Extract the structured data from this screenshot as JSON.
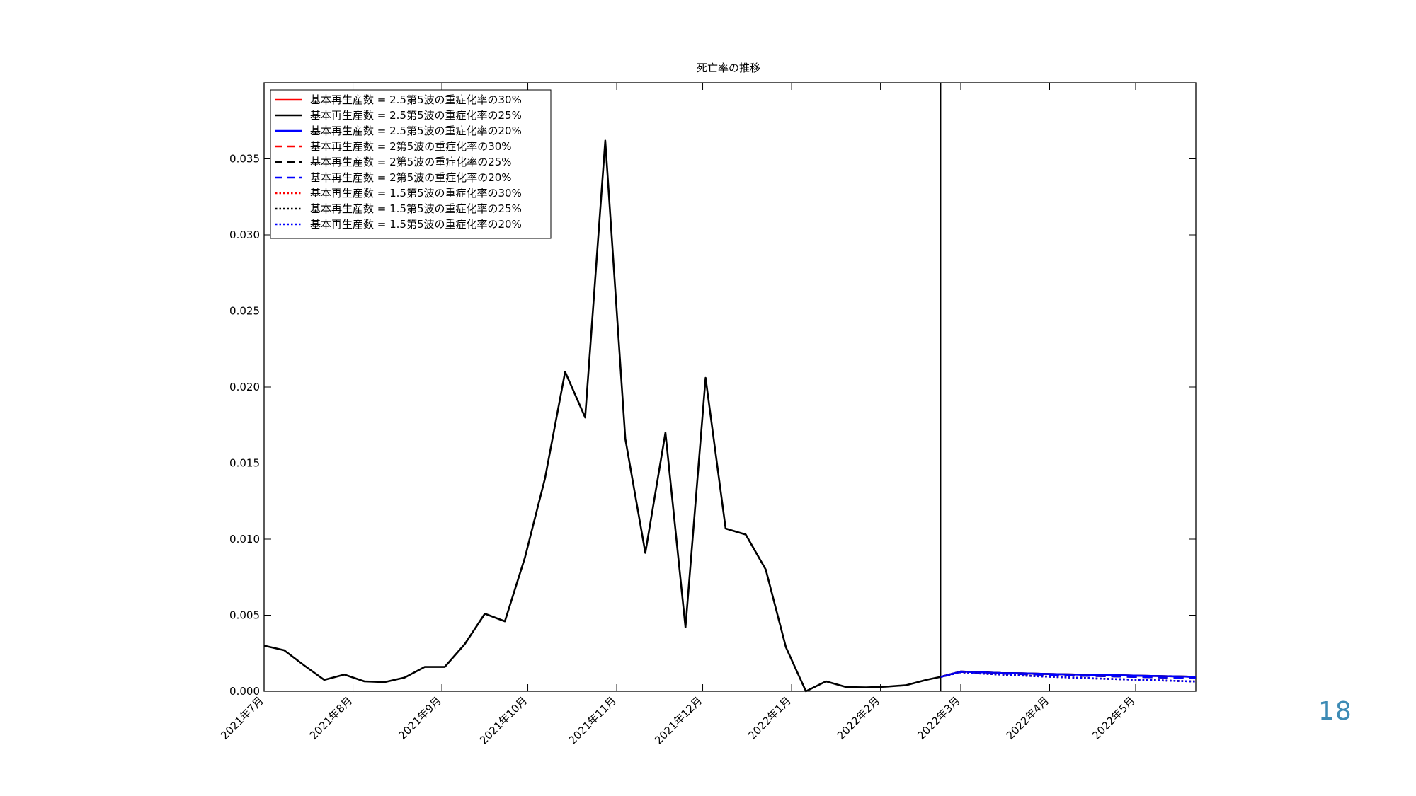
{
  "page_number": "18",
  "chart_data": {
    "type": "line",
    "title": "死亡率の推移",
    "xlabel": "",
    "ylabel": "",
    "x_start": "2021-07-01",
    "x_end": "2022-05-22",
    "ylim": [
      0,
      0.04
    ],
    "yticks": [
      0.0,
      0.005,
      0.01,
      0.015,
      0.02,
      0.025,
      0.03,
      0.035
    ],
    "ytick_labels": [
      "0.000",
      "0.005",
      "0.010",
      "0.015",
      "0.020",
      "0.025",
      "0.030",
      "0.035"
    ],
    "xticks": [
      {
        "date": "2021-07-01",
        "label": "2021年7月"
      },
      {
        "date": "2021-08-01",
        "label": "2021年8月"
      },
      {
        "date": "2021-09-01",
        "label": "2021年9月"
      },
      {
        "date": "2021-10-01",
        "label": "2021年10月"
      },
      {
        "date": "2021-11-01",
        "label": "2021年11月"
      },
      {
        "date": "2021-12-01",
        "label": "2021年12月"
      },
      {
        "date": "2022-01-01",
        "label": "2022年1月"
      },
      {
        "date": "2022-02-01",
        "label": "2022年2月"
      },
      {
        "date": "2022-03-01",
        "label": "2022年3月"
      },
      {
        "date": "2022-04-01",
        "label": "2022年4月"
      },
      {
        "date": "2022-05-01",
        "label": "2022年5月"
      }
    ],
    "vertical_line": "2022-02-22",
    "grid": false,
    "legend_position": "top-left",
    "observed": {
      "dates": [
        "2021-07-01",
        "2021-07-08",
        "2021-07-15",
        "2021-07-22",
        "2021-07-29",
        "2021-08-05",
        "2021-08-12",
        "2021-08-19",
        "2021-08-26",
        "2021-09-02",
        "2021-09-09",
        "2021-09-16",
        "2021-09-23",
        "2021-09-30",
        "2021-10-07",
        "2021-10-14",
        "2021-10-21",
        "2021-10-28",
        "2021-11-04",
        "2021-11-11",
        "2021-11-18",
        "2021-11-25",
        "2021-12-02",
        "2021-12-09",
        "2021-12-16",
        "2021-12-23",
        "2021-12-30",
        "2022-01-06",
        "2022-01-13",
        "2022-01-20",
        "2022-01-27",
        "2022-02-03",
        "2022-02-10",
        "2022-02-17",
        "2022-02-22"
      ],
      "values": [
        0.003,
        0.0027,
        0.0017,
        0.00075,
        0.0011,
        0.00065,
        0.0006,
        0.0009,
        0.0016,
        0.0016,
        0.0031,
        0.0051,
        0.0046,
        0.0088,
        0.014,
        0.021,
        0.018,
        0.0362,
        0.0166,
        0.0091,
        0.017,
        0.0042,
        0.0206,
        0.0107,
        0.0103,
        0.008,
        0.0029,
        0.0,
        0.00065,
        0.00028,
        0.00025,
        0.0003,
        0.0004,
        0.00075,
        0.00095
      ]
    },
    "forecast_dates": [
      "2022-02-22",
      "2022-03-01",
      "2022-03-08",
      "2022-03-15",
      "2022-03-22",
      "2022-03-29",
      "2022-04-05",
      "2022-04-12",
      "2022-04-19",
      "2022-04-26",
      "2022-05-03",
      "2022-05-10",
      "2022-05-17",
      "2022-05-22"
    ],
    "series": [
      {
        "name": "基本再生産数 = 2.5第5波の重症化率の30%",
        "color": "#ff0000",
        "style": "solid",
        "values": [
          0.00095,
          0.0013,
          0.00125,
          0.0012,
          0.00118,
          0.00115,
          0.00112,
          0.0011,
          0.00107,
          0.00105,
          0.00102,
          0.001,
          0.00097,
          0.00095
        ]
      },
      {
        "name": "基本再生産数 = 2.5第5波の重症化率の25%",
        "color": "#000000",
        "style": "solid",
        "values": [
          0.00095,
          0.0013,
          0.00125,
          0.0012,
          0.00118,
          0.00115,
          0.00112,
          0.0011,
          0.00107,
          0.00105,
          0.00102,
          0.001,
          0.00097,
          0.00095
        ]
      },
      {
        "name": "基本再生産数 = 2.5第5波の重症化率の20%",
        "color": "#0000ff",
        "style": "solid",
        "values": [
          0.00095,
          0.0013,
          0.00125,
          0.0012,
          0.00118,
          0.00115,
          0.00112,
          0.0011,
          0.00107,
          0.00105,
          0.00102,
          0.001,
          0.00097,
          0.00095
        ]
      },
      {
        "name": "基本再生産数 = 2第5波の重症化率の30%",
        "color": "#ff0000",
        "style": "dashed",
        "values": [
          0.00095,
          0.00128,
          0.00122,
          0.00117,
          0.00113,
          0.0011,
          0.00106,
          0.00103,
          0.001,
          0.00097,
          0.00094,
          0.00091,
          0.00088,
          0.00086
        ]
      },
      {
        "name": "基本再生産数 = 2第5波の重症化率の25%",
        "color": "#000000",
        "style": "dashed",
        "values": [
          0.00095,
          0.00128,
          0.00122,
          0.00117,
          0.00113,
          0.0011,
          0.00106,
          0.00103,
          0.001,
          0.00097,
          0.00094,
          0.00091,
          0.00088,
          0.00086
        ]
      },
      {
        "name": "基本再生産数 = 2第5波の重症化率の20%",
        "color": "#0000ff",
        "style": "dashed",
        "values": [
          0.00095,
          0.00128,
          0.00122,
          0.00117,
          0.00113,
          0.0011,
          0.00106,
          0.00103,
          0.001,
          0.00097,
          0.00094,
          0.00091,
          0.00088,
          0.00086
        ]
      },
      {
        "name": "基本再生産数 = 1.5第5波の重症化率の30%",
        "color": "#ff0000",
        "style": "dotted",
        "values": [
          0.00095,
          0.00125,
          0.00117,
          0.0011,
          0.00104,
          0.00098,
          0.00093,
          0.00088,
          0.00083,
          0.00079,
          0.00075,
          0.00071,
          0.00067,
          0.00064
        ]
      },
      {
        "name": "基本再生産数 = 1.5第5波の重症化率の25%",
        "color": "#000000",
        "style": "dotted",
        "values": [
          0.00095,
          0.00125,
          0.00117,
          0.0011,
          0.00104,
          0.00098,
          0.00093,
          0.00088,
          0.00083,
          0.00079,
          0.00075,
          0.00071,
          0.00067,
          0.00064
        ]
      },
      {
        "name": "基本再生産数 = 1.5第5波の重症化率の20%",
        "color": "#0000ff",
        "style": "dotted",
        "values": [
          0.00095,
          0.00125,
          0.00117,
          0.0011,
          0.00104,
          0.00098,
          0.00093,
          0.00088,
          0.00083,
          0.00079,
          0.00075,
          0.00071,
          0.00067,
          0.00064
        ]
      }
    ]
  }
}
